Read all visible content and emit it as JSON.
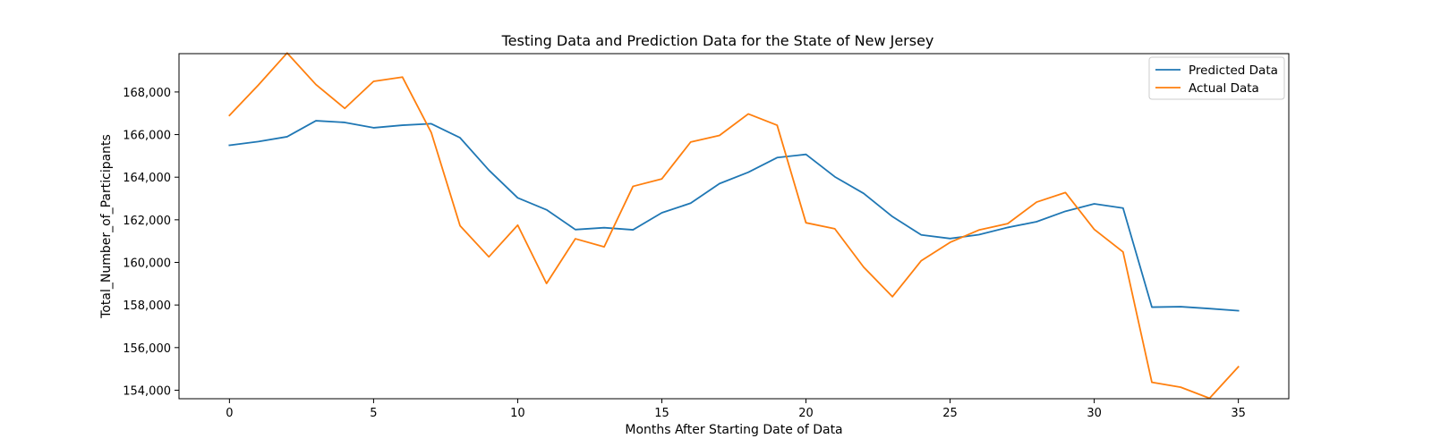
{
  "chart_data": {
    "type": "line",
    "title": "Testing Data and Prediction Data for the State of New Jersey",
    "xlabel": "Months After Starting Date of Data",
    "ylabel": "Total_Number_of_Participants",
    "xlim": [
      -1.75,
      36.75
    ],
    "ylim": [
      153600,
      169800
    ],
    "xticks": [
      0,
      5,
      10,
      15,
      20,
      25,
      30,
      35
    ],
    "xtick_labels": [
      "0",
      "5",
      "10",
      "15",
      "20",
      "25",
      "30",
      "35"
    ],
    "yticks": [
      154000,
      156000,
      158000,
      160000,
      162000,
      164000,
      166000,
      168000
    ],
    "ytick_labels": [
      "154,000",
      "156,000",
      "158,000",
      "160,000",
      "162,000",
      "164,000",
      "166,000",
      "168,000"
    ],
    "grid": false,
    "legend": "upper-right",
    "x": [
      0,
      1,
      2,
      3,
      4,
      5,
      6,
      7,
      8,
      9,
      10,
      11,
      12,
      13,
      14,
      15,
      16,
      17,
      18,
      19,
      20,
      21,
      22,
      23,
      24,
      25,
      26,
      27,
      28,
      29,
      30,
      31,
      32,
      33,
      34,
      35
    ],
    "series": [
      {
        "name": "Predicted Data",
        "color": "#1f77b4",
        "values": [
          165500,
          165670,
          165900,
          166650,
          166570,
          166320,
          166440,
          166510,
          165850,
          164330,
          163030,
          162470,
          161540,
          161630,
          161530,
          162330,
          162780,
          163700,
          164230,
          164920,
          165070,
          164020,
          163240,
          162150,
          161290,
          161120,
          161300,
          161640,
          161910,
          162400,
          162750,
          162550,
          157900,
          157920,
          157830,
          157730
        ]
      },
      {
        "name": "Actual Data",
        "color": "#ff7f0e",
        "values": [
          166900,
          168320,
          169830,
          168350,
          167230,
          168500,
          168700,
          166100,
          161720,
          160260,
          161750,
          159010,
          161110,
          160730,
          163570,
          163920,
          165650,
          165960,
          166970,
          166440,
          161860,
          161580,
          159780,
          158390,
          160080,
          160940,
          161520,
          161820,
          162830,
          163280,
          161550,
          160490,
          154370,
          154140,
          153620,
          155100
        ]
      }
    ]
  }
}
